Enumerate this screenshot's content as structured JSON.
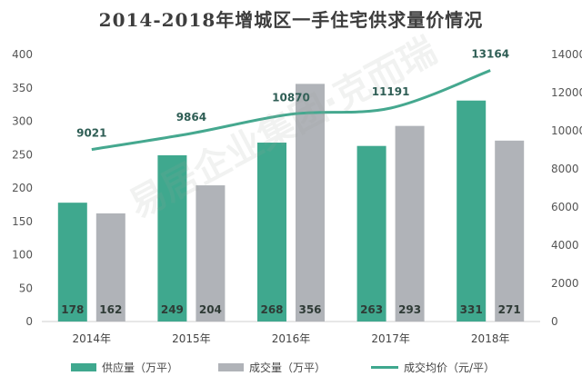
{
  "title": "2014-2018年增城区一手住宅供求量价情况",
  "watermark": "易居企业集团·克而瑞",
  "colors": {
    "supply": "#3fa88e",
    "sold": "#b0b3b8",
    "price": "#45a88f"
  },
  "chart_data": {
    "type": "bar",
    "categories": [
      "2014年",
      "2015年",
      "2016年",
      "2017年",
      "2018年"
    ],
    "series": [
      {
        "name": "供应量（万平）",
        "type": "bar",
        "axis": "left",
        "values": [
          178,
          249,
          268,
          263,
          331
        ],
        "labels": [
          "178",
          "249",
          "268",
          "263",
          "331"
        ]
      },
      {
        "name": "成交量（万平）",
        "type": "bar",
        "axis": "left",
        "values": [
          162,
          204,
          356,
          293,
          271
        ],
        "labels": [
          "162",
          "204",
          "356",
          "293",
          "271"
        ]
      },
      {
        "name": "成交均价（元/平）",
        "type": "line",
        "axis": "right",
        "values": [
          9021,
          9864,
          10870,
          11191,
          13164
        ],
        "labels": [
          "9021",
          "9864",
          "10870",
          "11191",
          "13164"
        ]
      }
    ],
    "y_left": {
      "min": 0,
      "max": 400,
      "ticks": [
        "0",
        "50",
        "100",
        "150",
        "200",
        "250",
        "300",
        "350",
        "400"
      ]
    },
    "y_right": {
      "min": 0,
      "max": 14000,
      "ticks": [
        "0",
        "2000",
        "4000",
        "6000",
        "8000",
        "10000",
        "12000",
        "14000"
      ]
    },
    "grid": false,
    "legend_position": "bottom"
  },
  "legend": [
    {
      "label": "供应量（万平）",
      "kind": "bar",
      "color": "#3fa88e"
    },
    {
      "label": "成交量（万平）",
      "kind": "bar",
      "color": "#b0b3b8"
    },
    {
      "label": "成交均价（元/平）",
      "kind": "line",
      "color": "#45a88f"
    }
  ]
}
